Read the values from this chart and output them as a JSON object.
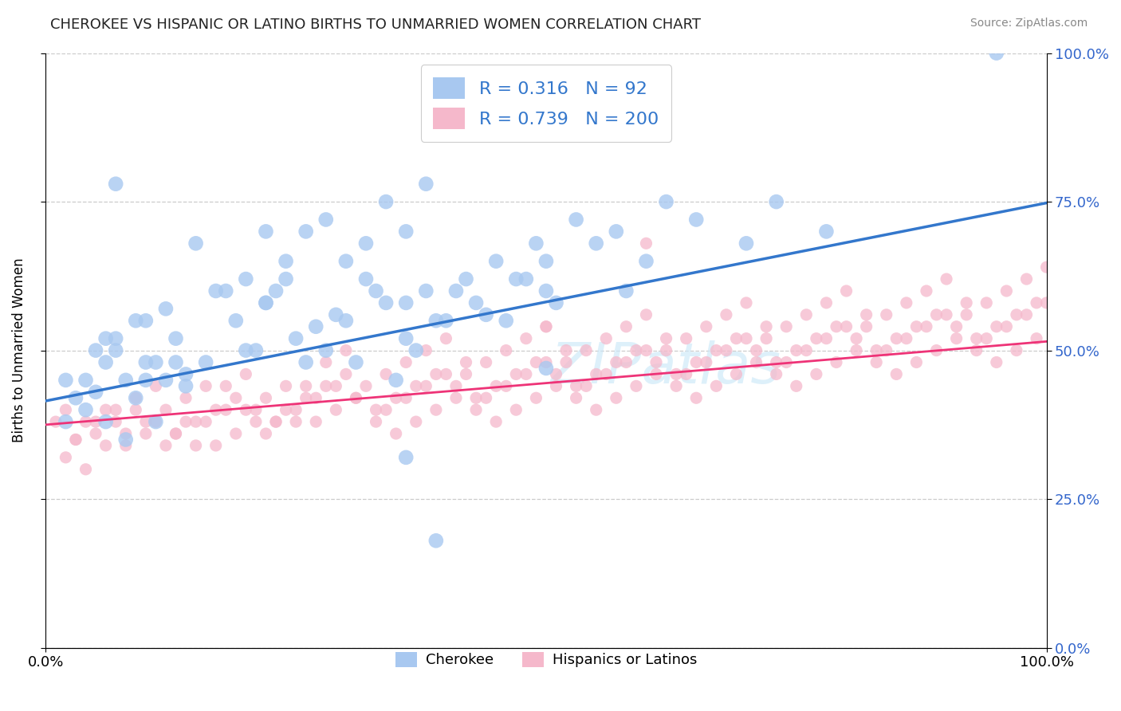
{
  "title": "CHEROKEE VS HISPANIC OR LATINO BIRTHS TO UNMARRIED WOMEN CORRELATION CHART",
  "source": "Source: ZipAtlas.com",
  "ylabel": "Births to Unmarried Women",
  "watermark": "ZIPatlas",
  "legend1_R": "0.316",
  "legend1_N": "92",
  "legend2_R": "0.739",
  "legend2_N": "200",
  "cherokee_fill": "#a8c8f0",
  "cherokee_edge": "#6aaee8",
  "hispanic_fill": "#f5b8cb",
  "hispanic_edge": "#f090b0",
  "cherokee_line_color": "#3377cc",
  "hispanic_line_color": "#ee3377",
  "xlim": [
    0.0,
    1.0
  ],
  "ylim": [
    0.0,
    1.0
  ],
  "right_ytick_labels": [
    "0.0%",
    "25.0%",
    "50.0%",
    "75.0%",
    "100.0%"
  ],
  "right_ytick_vals": [
    0.0,
    0.25,
    0.5,
    0.75,
    1.0
  ],
  "xtick_labels": [
    "0.0%",
    "100.0%"
  ],
  "xtick_vals": [
    0.0,
    1.0
  ],
  "cherokee_line_x0": 0.0,
  "cherokee_line_y0": 0.415,
  "cherokee_line_x1": 1.0,
  "cherokee_line_y1": 0.748,
  "hispanic_line_x0": 0.0,
  "hispanic_line_y0": 0.375,
  "hispanic_line_x1": 1.0,
  "hispanic_line_y1": 0.515,
  "cherokee_x": [
    0.02,
    0.03,
    0.04,
    0.05,
    0.06,
    0.07,
    0.09,
    0.1,
    0.11,
    0.13,
    0.05,
    0.06,
    0.07,
    0.08,
    0.09,
    0.1,
    0.11,
    0.12,
    0.13,
    0.14,
    0.06,
    0.08,
    0.1,
    0.12,
    0.14,
    0.16,
    0.18,
    0.2,
    0.22,
    0.24,
    0.15,
    0.17,
    0.19,
    0.21,
    0.23,
    0.25,
    0.27,
    0.29,
    0.31,
    0.33,
    0.26,
    0.28,
    0.3,
    0.32,
    0.34,
    0.36,
    0.38,
    0.4,
    0.42,
    0.44,
    0.35,
    0.37,
    0.39,
    0.41,
    0.43,
    0.45,
    0.47,
    0.49,
    0.51,
    0.53,
    0.46,
    0.48,
    0.5,
    0.55,
    0.57,
    0.6,
    0.65,
    0.7,
    0.73,
    0.78,
    0.2,
    0.22,
    0.24,
    0.26,
    0.28,
    0.3,
    0.32,
    0.34,
    0.36,
    0.38,
    0.58,
    0.62,
    0.95,
    0.02,
    0.04,
    0.07,
    0.5,
    0.5,
    0.22,
    0.36,
    0.36,
    0.39
  ],
  "cherokee_y": [
    0.38,
    0.42,
    0.45,
    0.5,
    0.48,
    0.52,
    0.55,
    0.45,
    0.48,
    0.52,
    0.43,
    0.38,
    0.5,
    0.45,
    0.42,
    0.55,
    0.38,
    0.45,
    0.48,
    0.44,
    0.52,
    0.35,
    0.48,
    0.57,
    0.46,
    0.48,
    0.6,
    0.5,
    0.58,
    0.62,
    0.68,
    0.6,
    0.55,
    0.5,
    0.6,
    0.52,
    0.54,
    0.56,
    0.48,
    0.6,
    0.48,
    0.5,
    0.55,
    0.62,
    0.58,
    0.52,
    0.6,
    0.55,
    0.62,
    0.56,
    0.45,
    0.5,
    0.55,
    0.6,
    0.58,
    0.65,
    0.62,
    0.68,
    0.58,
    0.72,
    0.55,
    0.62,
    0.6,
    0.68,
    0.7,
    0.65,
    0.72,
    0.68,
    0.75,
    0.7,
    0.62,
    0.58,
    0.65,
    0.7,
    0.72,
    0.65,
    0.68,
    0.75,
    0.7,
    0.78,
    0.6,
    0.75,
    1.0,
    0.45,
    0.4,
    0.78,
    0.47,
    0.65,
    0.7,
    0.58,
    0.32,
    0.18
  ],
  "hispanic_x": [
    0.01,
    0.02,
    0.03,
    0.04,
    0.05,
    0.06,
    0.07,
    0.08,
    0.09,
    0.1,
    0.02,
    0.03,
    0.04,
    0.05,
    0.06,
    0.07,
    0.08,
    0.09,
    0.1,
    0.11,
    0.11,
    0.12,
    0.13,
    0.14,
    0.15,
    0.16,
    0.17,
    0.18,
    0.19,
    0.2,
    0.12,
    0.13,
    0.14,
    0.15,
    0.16,
    0.17,
    0.18,
    0.19,
    0.2,
    0.21,
    0.21,
    0.22,
    0.23,
    0.24,
    0.25,
    0.26,
    0.27,
    0.28,
    0.29,
    0.3,
    0.22,
    0.23,
    0.24,
    0.25,
    0.26,
    0.27,
    0.28,
    0.29,
    0.3,
    0.31,
    0.31,
    0.32,
    0.33,
    0.34,
    0.35,
    0.36,
    0.37,
    0.38,
    0.39,
    0.4,
    0.33,
    0.34,
    0.35,
    0.36,
    0.37,
    0.38,
    0.39,
    0.4,
    0.41,
    0.42,
    0.41,
    0.42,
    0.43,
    0.44,
    0.45,
    0.46,
    0.47,
    0.48,
    0.49,
    0.5,
    0.43,
    0.44,
    0.45,
    0.46,
    0.47,
    0.48,
    0.49,
    0.5,
    0.51,
    0.52,
    0.51,
    0.52,
    0.53,
    0.54,
    0.55,
    0.56,
    0.57,
    0.58,
    0.59,
    0.6,
    0.53,
    0.54,
    0.55,
    0.56,
    0.57,
    0.58,
    0.59,
    0.6,
    0.61,
    0.62,
    0.61,
    0.62,
    0.63,
    0.64,
    0.65,
    0.66,
    0.67,
    0.68,
    0.69,
    0.7,
    0.63,
    0.64,
    0.65,
    0.66,
    0.67,
    0.68,
    0.69,
    0.7,
    0.71,
    0.72,
    0.71,
    0.72,
    0.73,
    0.74,
    0.75,
    0.76,
    0.77,
    0.78,
    0.79,
    0.8,
    0.73,
    0.74,
    0.75,
    0.76,
    0.77,
    0.78,
    0.79,
    0.8,
    0.81,
    0.82,
    0.81,
    0.82,
    0.83,
    0.84,
    0.85,
    0.86,
    0.87,
    0.88,
    0.89,
    0.9,
    0.83,
    0.84,
    0.85,
    0.86,
    0.87,
    0.88,
    0.89,
    0.9,
    0.91,
    0.92,
    0.91,
    0.92,
    0.93,
    0.94,
    0.95,
    0.96,
    0.97,
    0.98,
    0.99,
    1.0,
    0.93,
    0.94,
    0.95,
    0.96,
    0.97,
    0.98,
    0.99,
    1.0,
    0.5,
    0.6
  ],
  "hispanic_y": [
    0.38,
    0.4,
    0.35,
    0.38,
    0.36,
    0.4,
    0.38,
    0.34,
    0.4,
    0.36,
    0.32,
    0.35,
    0.3,
    0.38,
    0.34,
    0.4,
    0.36,
    0.42,
    0.38,
    0.44,
    0.38,
    0.4,
    0.36,
    0.42,
    0.38,
    0.44,
    0.4,
    0.44,
    0.42,
    0.46,
    0.34,
    0.36,
    0.38,
    0.34,
    0.38,
    0.34,
    0.4,
    0.36,
    0.4,
    0.38,
    0.4,
    0.42,
    0.38,
    0.44,
    0.4,
    0.44,
    0.42,
    0.48,
    0.44,
    0.5,
    0.36,
    0.38,
    0.4,
    0.38,
    0.42,
    0.38,
    0.44,
    0.4,
    0.46,
    0.42,
    0.42,
    0.44,
    0.4,
    0.46,
    0.42,
    0.48,
    0.44,
    0.5,
    0.46,
    0.52,
    0.38,
    0.4,
    0.36,
    0.42,
    0.38,
    0.44,
    0.4,
    0.46,
    0.42,
    0.48,
    0.44,
    0.46,
    0.42,
    0.48,
    0.44,
    0.5,
    0.46,
    0.52,
    0.48,
    0.54,
    0.4,
    0.42,
    0.38,
    0.44,
    0.4,
    0.46,
    0.42,
    0.48,
    0.44,
    0.5,
    0.46,
    0.48,
    0.44,
    0.5,
    0.46,
    0.52,
    0.48,
    0.54,
    0.5,
    0.56,
    0.42,
    0.44,
    0.4,
    0.46,
    0.42,
    0.48,
    0.44,
    0.5,
    0.46,
    0.52,
    0.48,
    0.5,
    0.46,
    0.52,
    0.48,
    0.54,
    0.5,
    0.56,
    0.52,
    0.58,
    0.44,
    0.46,
    0.42,
    0.48,
    0.44,
    0.5,
    0.46,
    0.52,
    0.48,
    0.54,
    0.5,
    0.52,
    0.48,
    0.54,
    0.5,
    0.56,
    0.52,
    0.58,
    0.54,
    0.6,
    0.46,
    0.48,
    0.44,
    0.5,
    0.46,
    0.52,
    0.48,
    0.54,
    0.5,
    0.56,
    0.52,
    0.54,
    0.5,
    0.56,
    0.52,
    0.58,
    0.54,
    0.6,
    0.56,
    0.62,
    0.48,
    0.5,
    0.46,
    0.52,
    0.48,
    0.54,
    0.5,
    0.56,
    0.52,
    0.58,
    0.54,
    0.56,
    0.52,
    0.58,
    0.54,
    0.6,
    0.56,
    0.62,
    0.58,
    0.64,
    0.5,
    0.52,
    0.48,
    0.54,
    0.5,
    0.56,
    0.52,
    0.58,
    0.54,
    0.68
  ]
}
